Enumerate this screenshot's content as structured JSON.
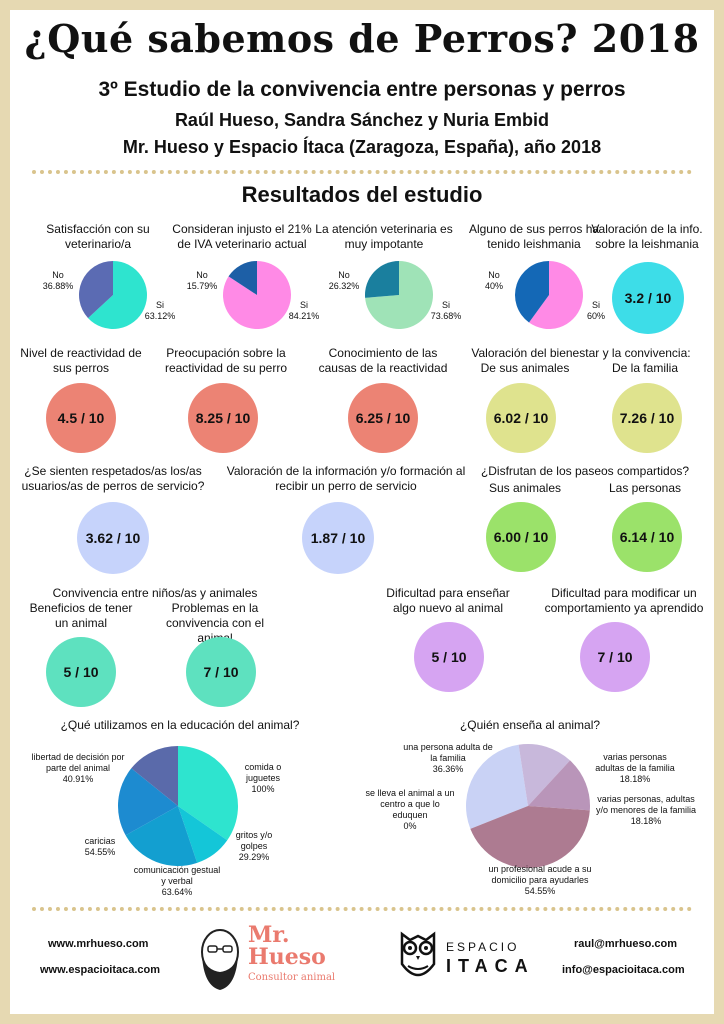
{
  "header": {
    "title": "¿Qué sabemos de Perros?  2018",
    "subtitle": "3º Estudio de la convivencia entre personas y perros",
    "authors": "Raúl Hueso, Sandra Sánchez y Nuria Embid",
    "org": "Mr. Hueso y Espacio Ítaca (Zaragoza, España), año 2018"
  },
  "section_title": "Resultados del estudio",
  "pies_row1": [
    {
      "title": "Satisfacción con su veterinario/a",
      "no_label": "No",
      "no_value": "36.88%",
      "yes_label": "Si",
      "yes_value": "63.12%",
      "yes": 63.12,
      "no_color": "#5b6bb3",
      "yes_color": "#2ee4cf"
    },
    {
      "title": "Consideran injusto el 21% de IVA veterinario actual",
      "no_label": "No",
      "no_value": "15.79%",
      "yes_label": "Si",
      "yes_value": "84.21%",
      "yes": 84.21,
      "no_color": "#1d5fa6",
      "yes_color": "#ff8ae6"
    },
    {
      "title": "La atención veterinaria es muy impotante",
      "no_label": "No",
      "no_value": "26.32%",
      "yes_label": "Si",
      "yes_value": "73.68%",
      "yes": 73.68,
      "no_color": "#1a7f9e",
      "yes_color": "#9fe3b7"
    },
    {
      "title": "Alguno de sus perros ha tenido leishmania",
      "no_label": "No",
      "no_value": "40%",
      "yes_label": "Si",
      "yes_value": "60%",
      "yes": 60,
      "no_color": "#1468b6",
      "yes_color": "#ff8ae6"
    }
  ],
  "leish_info": {
    "title": "Valoración de la info. sobre la leishmania",
    "value": "3.2 / 10"
  },
  "reactivity": [
    {
      "title": "Nivel de reactividad de sus perros",
      "value": "4.5 / 10"
    },
    {
      "title": "Preocupación sobre la reactividad de su perro",
      "value": "8.25 / 10"
    },
    {
      "title": "Conocimiento de las causas de la reactividad",
      "value": "6.25 / 10"
    }
  ],
  "wellbeing": {
    "title": "Valoración del bienestar y la convivencia:",
    "a_label": "De sus animales",
    "a_value": "6.02 / 10",
    "b_label": "De la familia",
    "b_value": "7.26 / 10"
  },
  "service": [
    {
      "title": "¿Se sienten respetados/as los/as usuarios/as de perros de servicio?",
      "value": "3.62 / 10"
    },
    {
      "title": "Valoración de la información y/o formación al recibir un perro de servicio",
      "value": "1.87 / 10"
    }
  ],
  "walks": {
    "title": "¿Disfrutan de los paseos compartidos?",
    "a_label": "Sus animales",
    "a_value": "6.00 / 10",
    "b_label": "Las personas",
    "b_value": "6.14 / 10"
  },
  "kids": {
    "title": "Convivencia entre niños/as y animales",
    "a_label": "Beneficios de tener un animal",
    "a_value": "5 / 10",
    "b_label": "Problemas en la convivencia con el animal",
    "b_value": "7 / 10"
  },
  "teach": [
    {
      "title": "Dificultad para enseñar algo nuevo al animal",
      "value": "5 / 10"
    },
    {
      "title": "Dificultad para modificar un comportamiento ya aprendido",
      "value": "7 / 10"
    }
  ],
  "chart_data": [
    {
      "type": "pie",
      "title": "¿Qué utilizamos en la educación del animal?",
      "slices": [
        {
          "label": "comida o juguetes",
          "value": 100,
          "display": "100%",
          "color": "#2ee4cf"
        },
        {
          "label": "gritos y/o golpes",
          "value": 29.29,
          "display": "29.29%",
          "color": "#14c6d8"
        },
        {
          "label": "comunicación gestual y verbal",
          "value": 63.64,
          "display": "63.64%",
          "color": "#139fd0"
        },
        {
          "label": "caricias",
          "value": 54.55,
          "display": "54.55%",
          "color": "#1d8bd0"
        },
        {
          "label": "libertad de decisión por parte del animal",
          "value": 40.91,
          "display": "40.91%",
          "color": "#5a6aaa"
        }
      ]
    },
    {
      "type": "pie",
      "title": "¿Quién enseña al animal?",
      "slices": [
        {
          "label": "una persona adulta de la familia",
          "value": 36.36,
          "display": "36.36%",
          "color": "#c9d2f5"
        },
        {
          "label": "varias personas adultas de la familia",
          "value": 18.18,
          "display": "18.18%",
          "color": "#c8b8db"
        },
        {
          "label": "varias personas,  adultas y/o menores de la familia",
          "value": 18.18,
          "display": "18.18%",
          "color": "#b995b9"
        },
        {
          "label": "un profesional acude a su domicilio para ayudarles",
          "value": 54.55,
          "display": "54.55%",
          "color": "#ad7b91"
        },
        {
          "label": "se lleva el animal a un centro a que lo eduquen",
          "value": 0,
          "display": "0%",
          "color": "#a08090"
        }
      ]
    }
  ],
  "footer": {
    "web1": "www.mrhueso.com",
    "web2": "www.espacioitaca.com",
    "mail1": "raul@mrhueso.com",
    "mail2": "info@espacioitaca.com",
    "logo1_line1": "Mr.",
    "logo1_line2": "Hueso",
    "logo1_tag": "Consultor animal",
    "logo2_top": "ESPACIO",
    "logo2_bottom": "ITACA"
  }
}
